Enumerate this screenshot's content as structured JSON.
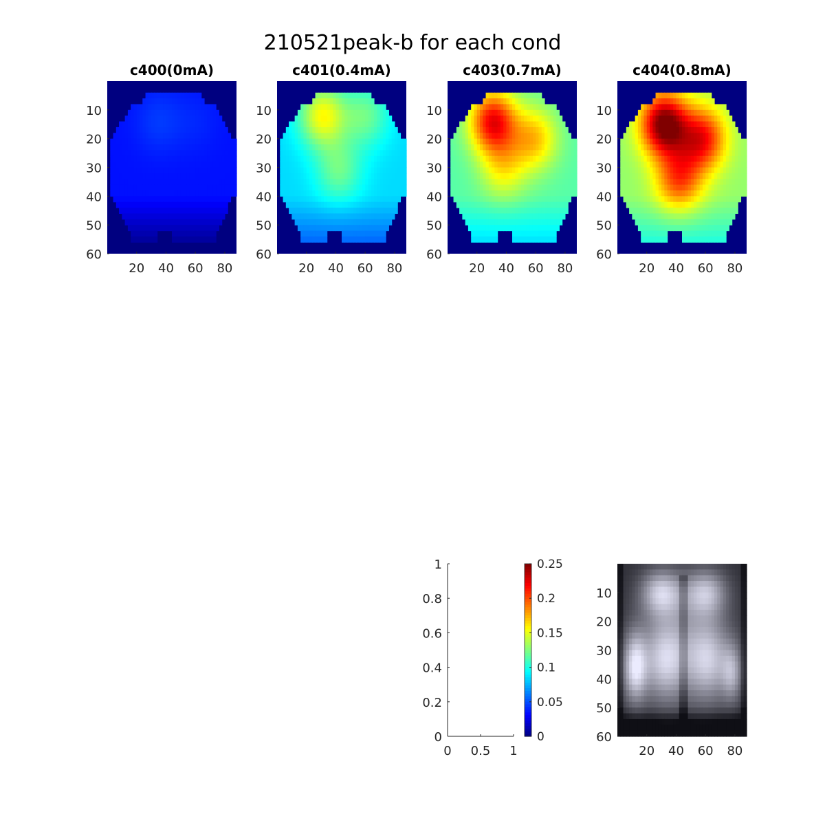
{
  "figure_title": "210521peak-b for each cond",
  "chart_data": [
    {
      "type": "heatmap",
      "title": "c400(0mA)",
      "colormap": "jet",
      "clim": [
        0,
        0.25
      ],
      "background_value": 0,
      "xticks": [
        20,
        40,
        60,
        80
      ],
      "yticks": [
        10,
        20,
        30,
        40,
        50,
        60
      ],
      "xlim": [
        0,
        88
      ],
      "ylim": [
        0,
        60
      ],
      "base_level": 0.035,
      "hotspots": [
        {
          "x": 35,
          "y": 14,
          "value": 0.045
        },
        {
          "x": 60,
          "y": 14,
          "value": 0.04
        }
      ]
    },
    {
      "type": "heatmap",
      "title": "c401(0.4mA)",
      "colormap": "jet",
      "clim": [
        0,
        0.25
      ],
      "background_value": 0,
      "xticks": [
        20,
        40,
        60,
        80
      ],
      "yticks": [
        10,
        20,
        30,
        40,
        50,
        60
      ],
      "xlim": [
        0,
        88
      ],
      "ylim": [
        0,
        60
      ],
      "base_level": 0.085,
      "hotspots": [
        {
          "x": 31,
          "y": 12,
          "value": 0.155
        },
        {
          "x": 60,
          "y": 12,
          "value": 0.12
        },
        {
          "x": 42,
          "y": 31,
          "value": 0.12
        }
      ]
    },
    {
      "type": "heatmap",
      "title": "c403(0.7mA)",
      "colormap": "jet",
      "clim": [
        0,
        0.25
      ],
      "background_value": 0,
      "xticks": [
        20,
        40,
        60,
        80
      ],
      "yticks": [
        10,
        20,
        30,
        40,
        50,
        60
      ],
      "xlim": [
        0,
        88
      ],
      "ylim": [
        0,
        60
      ],
      "base_level": 0.115,
      "hotspots": [
        {
          "x": 31,
          "y": 14,
          "value": 0.22
        },
        {
          "x": 59,
          "y": 20,
          "value": 0.17
        },
        {
          "x": 38,
          "y": 30,
          "value": 0.155
        }
      ]
    },
    {
      "type": "heatmap",
      "title": "c404(0.8mA)",
      "colormap": "jet",
      "clim": [
        0,
        0.25
      ],
      "background_value": 0,
      "xticks": [
        20,
        40,
        60,
        80
      ],
      "yticks": [
        10,
        20,
        30,
        40,
        50,
        60
      ],
      "xlim": [
        0,
        88
      ],
      "ylim": [
        0,
        60
      ],
      "base_level": 0.13,
      "hotspots": [
        {
          "x": 32,
          "y": 15,
          "value": 0.255
        },
        {
          "x": 58,
          "y": 20,
          "value": 0.215
        },
        {
          "x": 42,
          "y": 34,
          "value": 0.2
        }
      ]
    },
    {
      "type": "line",
      "title": "",
      "series": [],
      "xlim": [
        0,
        1
      ],
      "ylim": [
        0,
        1
      ],
      "xticks": [
        "0",
        "0.5",
        "1"
      ],
      "yticks": [
        "0",
        "0.2",
        "0.4",
        "0.6",
        "0.8",
        "1"
      ]
    },
    {
      "type": "colorbar",
      "colormap": "jet",
      "range": [
        0,
        0.25
      ],
      "ticks": [
        "0",
        "0.05",
        "0.1",
        "0.15",
        "0.2",
        "0.25"
      ]
    },
    {
      "type": "heatmap",
      "title": "",
      "colormap": "gray",
      "xticks": [
        20,
        40,
        60,
        80
      ],
      "yticks": [
        10,
        20,
        30,
        40,
        50,
        60
      ],
      "xlim": [
        0,
        88
      ],
      "ylim": [
        0,
        60
      ]
    }
  ]
}
